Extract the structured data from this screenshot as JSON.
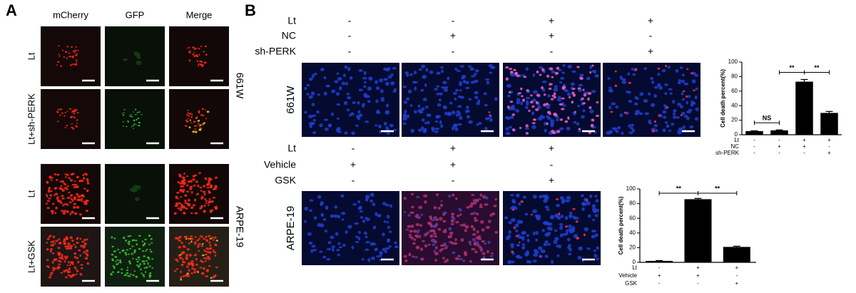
{
  "panel_a": {
    "label": "A",
    "columns": [
      "mCherry",
      "GFP",
      "Merge"
    ],
    "rows": [
      "Lt",
      "Lt+sh-PERK",
      "Lt",
      "Lt+GSK"
    ],
    "groups": [
      "661W",
      "ARPE-19"
    ]
  },
  "panel_b": {
    "label": "B",
    "top": {
      "cell_line": "661W",
      "rows": [
        {
          "name": "Lt",
          "signs": [
            "-",
            "-",
            "+",
            "+"
          ]
        },
        {
          "name": "NC",
          "signs": [
            "-",
            "+",
            "+",
            "-"
          ]
        },
        {
          "name": "sh-PERK",
          "signs": [
            "-",
            "-",
            "-",
            "+"
          ]
        }
      ]
    },
    "bottom": {
      "cell_line": "ARPE-19",
      "rows": [
        {
          "name": "Lt",
          "signs": [
            "-",
            "+",
            "+"
          ]
        },
        {
          "name": "Vehicle",
          "signs": [
            "+",
            "+",
            "-"
          ]
        },
        {
          "name": "GSK",
          "signs": [
            "-",
            "-",
            "+"
          ]
        }
      ]
    }
  },
  "chart_data": [
    {
      "type": "bar",
      "ylabel": "Cell death percent(%)",
      "values": [
        5,
        6,
        73,
        30
      ],
      "errors": [
        0.6,
        0.6,
        3,
        2
      ],
      "color": "#000000",
      "ylim": [
        0,
        100
      ],
      "yticks": [
        0,
        20,
        40,
        60,
        80,
        100
      ],
      "condition_rows": [
        {
          "name": "Lt",
          "signs": [
            "-",
            "-",
            "+",
            "+"
          ]
        },
        {
          "name": "NC",
          "signs": [
            "-",
            "+",
            "+",
            "-"
          ]
        },
        {
          "name": "sh-PERK",
          "signs": [
            "-",
            "-",
            "-",
            "+"
          ]
        }
      ],
      "annotations": [
        {
          "text": "NS",
          "from": 0,
          "to": 1
        },
        {
          "text": "**",
          "from": 1,
          "to": 2
        },
        {
          "text": "**",
          "from": 2,
          "to": 3
        }
      ]
    },
    {
      "type": "bar",
      "ylabel": "Cell death percent(%)",
      "values": [
        2,
        86,
        21
      ],
      "errors": [
        0.5,
        1,
        1
      ],
      "color": "#000000",
      "ylim": [
        0,
        100
      ],
      "yticks": [
        0,
        20,
        40,
        60,
        80,
        100
      ],
      "condition_rows": [
        {
          "name": "Lt",
          "signs": [
            "-",
            "+",
            "+"
          ]
        },
        {
          "name": "Vehicle",
          "signs": [
            "+",
            "+",
            "-"
          ]
        },
        {
          "name": "GSK",
          "signs": [
            "-",
            "-",
            "+"
          ]
        }
      ],
      "annotations": [
        {
          "text": "**",
          "from": 0,
          "to": 1
        },
        {
          "text": "**",
          "from": 1,
          "to": 2
        }
      ]
    }
  ]
}
